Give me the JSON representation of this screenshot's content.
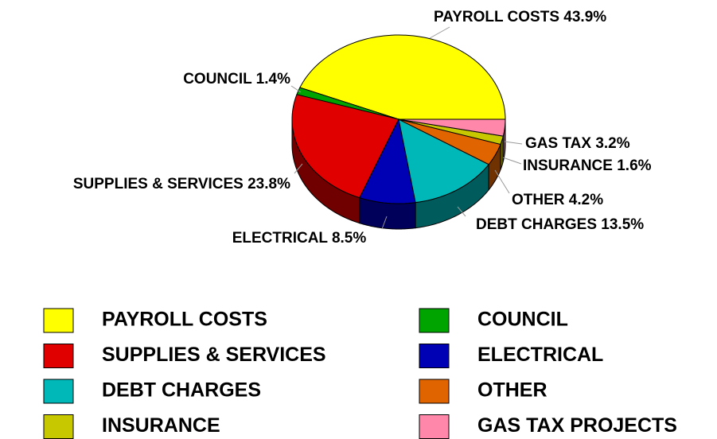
{
  "chart_data": {
    "type": "pie",
    "categories": [
      "PAYROLL COSTS",
      "COUNCIL",
      "SUPPLIES & SERVICES",
      "ELECTRICAL",
      "DEBT CHARGES",
      "OTHER",
      "INSURANCE",
      "GAS TAX PROJECTS"
    ],
    "values": [
      43.9,
      1.4,
      23.8,
      8.5,
      13.5,
      4.2,
      1.6,
      3.2
    ],
    "value_labels": [
      "PAYROLL COSTS 43.9%",
      "COUNCIL 1.4%",
      "SUPPLIES & SERVICES 23.8%",
      "ELECTRICAL 8.5%",
      "DEBT CHARGES 13.5%",
      "OTHER 4.2%",
      "INSURANCE 1.6%",
      "GAS TAX 3.2%"
    ],
    "colors": [
      "#ffff00",
      "#00a400",
      "#e00000",
      "#0000b4",
      "#00b8b8",
      "#e06400",
      "#c8c800",
      "#ff88aa"
    ],
    "legend": "bottom"
  }
}
